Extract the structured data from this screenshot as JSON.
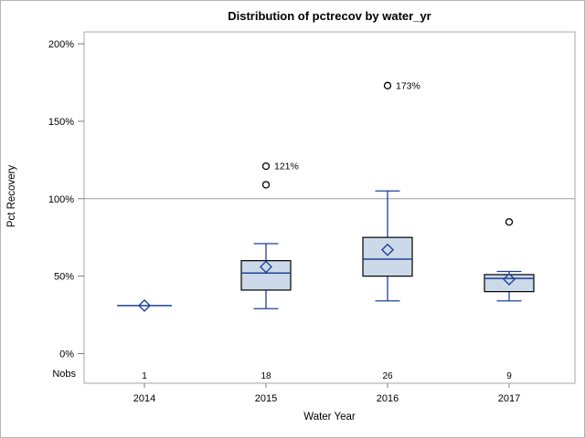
{
  "chart_data": {
    "type": "box",
    "title": "Distribution of pctrecov by water_yr",
    "xlabel": "Water Year",
    "ylabel": "Pct Recovery",
    "categories": [
      "2014",
      "2015",
      "2016",
      "2017"
    ],
    "y_ticks_pct": [
      0,
      50,
      100,
      150,
      200
    ],
    "y_tick_labels": [
      "0%",
      "50%",
      "100%",
      "150%",
      "200%"
    ],
    "ylim_pct": [
      -19,
      207
    ],
    "grid": "off",
    "reference_line_pct": 100,
    "nobs_label": "Nobs",
    "nobs": [
      "1",
      "18",
      "26",
      "9"
    ],
    "groups": [
      {
        "year": "2014",
        "n": 1,
        "single_value": 31,
        "mean": 31,
        "outliers": []
      },
      {
        "year": "2015",
        "n": 18,
        "whisker_low": 29,
        "q1": 41,
        "median": 52,
        "mean": 56,
        "q3": 60,
        "whisker_high": 71,
        "outliers": [
          {
            "value": 109
          },
          {
            "value": 121,
            "label": "121%"
          }
        ]
      },
      {
        "year": "2016",
        "n": 26,
        "whisker_low": 34,
        "q1": 50,
        "median": 61,
        "mean": 67,
        "q3": 75,
        "whisker_high": 105,
        "outliers": [
          {
            "value": 173,
            "label": "173%"
          }
        ]
      },
      {
        "year": "2017",
        "n": 9,
        "whisker_low": 34,
        "q1": 40,
        "median": 48.5,
        "mean": 48,
        "q3": 51,
        "whisker_high": 53,
        "outliers": [
          {
            "value": 85
          }
        ]
      }
    ],
    "colors": {
      "box_fill": "#CCD9E8",
      "box_border": "#000000",
      "whisker_median_mean": "#1F4199",
      "outlier": "#000000",
      "reference_line": "#9B9B9B",
      "axis_frame": "#A6A6A6",
      "tick_mark": "#7F7F7F",
      "background": "#FFFFFF"
    }
  }
}
